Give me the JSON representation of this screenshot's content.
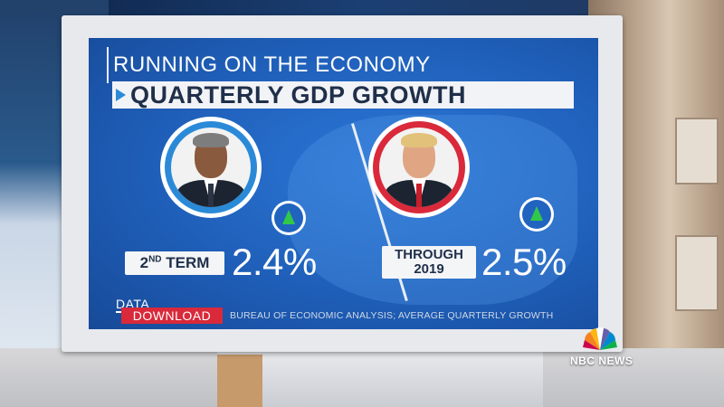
{
  "graphic": {
    "title": "RUNNING ON THE ECONOMY",
    "subtitle": "QUARTERLY GDP GROWTH",
    "accent_color": "#2b8ad8",
    "background_color": "#1f5fb9"
  },
  "left_panel": {
    "portrait_icon": "obama-portrait",
    "ring_color": "#2b8ad8",
    "trend_icon": "up-arrow-icon",
    "label_main": "2",
    "label_sup": "ND",
    "label_rest": " TERM",
    "value": "2.4%"
  },
  "right_panel": {
    "portrait_icon": "trump-portrait",
    "ring_color": "#d9293a",
    "trend_icon": "up-arrow-icon",
    "label_line1": "THROUGH",
    "label_line2": "2019",
    "value": "2.5%"
  },
  "footer": {
    "brand_line1": "DATA",
    "brand_line2": "DOWNLOAD",
    "source": "BUREAU OF ECONOMIC ANALYSIS; AVERAGE QUARTERLY GROWTH"
  },
  "network": {
    "logo_icon": "peacock-icon",
    "name": "NBC NEWS"
  }
}
